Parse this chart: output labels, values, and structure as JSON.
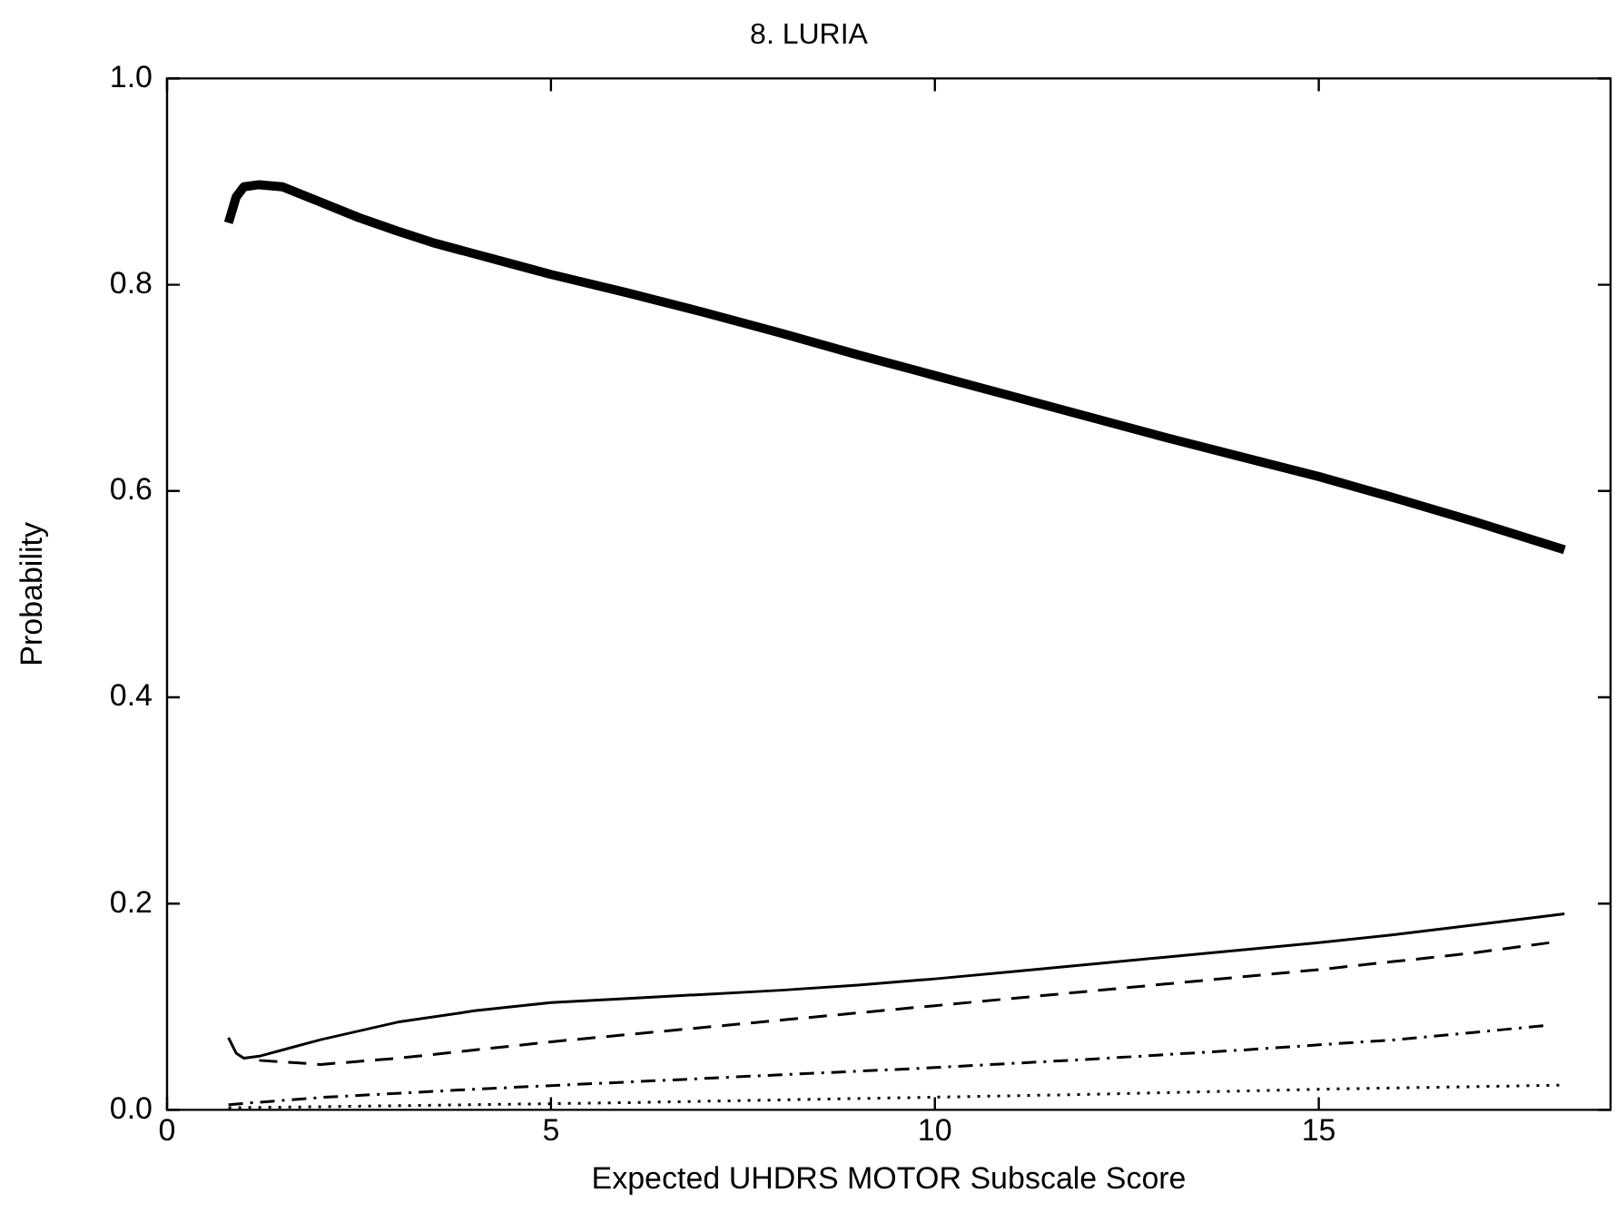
{
  "chart_data": {
    "type": "line",
    "title": "8. LURIA",
    "xlabel": "Expected UHDRS MOTOR Subscale Score",
    "ylabel": "Probability",
    "xlim": [
      0,
      18.8
    ],
    "xticks": [
      0,
      5,
      10,
      15
    ],
    "ylim": [
      0,
      1
    ],
    "yticks": [
      {
        "value": 0,
        "label": "0.0"
      },
      {
        "value": 0.2,
        "label": "0.2"
      },
      {
        "value": 0.4,
        "label": "0.4"
      },
      {
        "value": 0.6,
        "label": "0.6"
      },
      {
        "value": 0.8,
        "label": "0.8"
      },
      {
        "value": 1,
        "label": "1.0"
      }
    ],
    "grid": false,
    "legend": false,
    "marker": "none",
    "series": [
      {
        "color": "#000000",
        "line_style": "solid",
        "x": [
          0.8,
          0.9,
          1.0,
          1.2,
          1.5,
          2,
          2.5,
          3,
          3.5,
          4,
          4.5,
          5,
          6,
          7,
          8,
          9,
          10,
          11,
          12,
          13,
          14,
          15,
          16,
          17,
          18.2
        ],
        "values": [
          0.86,
          0.885,
          0.895,
          0.897,
          0.895,
          0.88,
          0.865,
          0.852,
          0.84,
          0.83,
          0.82,
          0.81,
          0.792,
          0.773,
          0.753,
          0.732,
          0.712,
          0.692,
          0.672,
          0.652,
          0.633,
          0.614,
          0.593,
          0.571,
          0.543
        ]
      },
      {
        "color": "#000000",
        "line_style": "solid",
        "x": [
          0.8,
          0.9,
          1.0,
          1.2,
          1.5,
          2,
          3,
          4,
          5,
          6,
          7,
          8,
          9,
          10,
          11,
          12,
          13,
          14,
          15,
          16,
          17,
          18.2
        ],
        "values": [
          0.07,
          0.055,
          0.05,
          0.052,
          0.058,
          0.068,
          0.085,
          0.096,
          0.104,
          0.108,
          0.112,
          0.116,
          0.121,
          0.127,
          0.134,
          0.141,
          0.148,
          0.155,
          0.162,
          0.17,
          0.179,
          0.19
        ]
      },
      {
        "color": "#000000",
        "line_style": "dashed",
        "x": [
          1.2,
          2,
          3,
          4,
          5,
          6,
          7,
          8,
          9,
          10,
          11,
          12,
          13,
          14,
          15,
          16,
          17,
          18
        ],
        "values": [
          0.048,
          0.044,
          0.05,
          0.058,
          0.066,
          0.073,
          0.08,
          0.087,
          0.094,
          0.101,
          0.108,
          0.115,
          0.122,
          0.129,
          0.136,
          0.144,
          0.152,
          0.162
        ]
      },
      {
        "color": "#000000",
        "line_style": "dashdot",
        "x": [
          0.8,
          2,
          4,
          6,
          8,
          10,
          12,
          14,
          16,
          18
        ],
        "values": [
          0.005,
          0.012,
          0.02,
          0.027,
          0.034,
          0.041,
          0.049,
          0.058,
          0.068,
          0.082
        ]
      },
      {
        "color": "#000000",
        "line_style": "dotted",
        "x": [
          0.8,
          3,
          6,
          9,
          12,
          15,
          18.2
        ],
        "values": [
          0.002,
          0.004,
          0.007,
          0.011,
          0.015,
          0.02,
          0.024
        ]
      }
    ]
  }
}
